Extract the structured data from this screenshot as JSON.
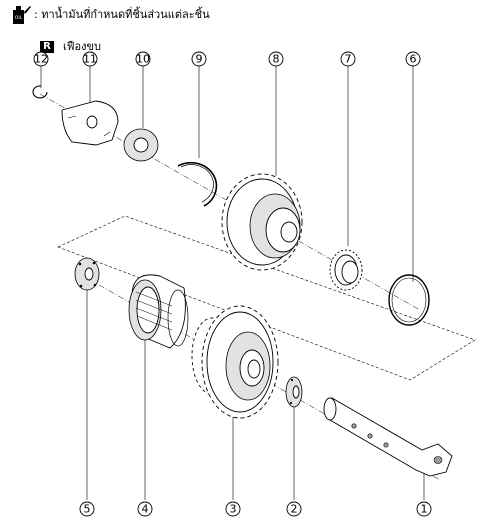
{
  "legend": {
    "oil_icon_label": "OIL",
    "oil_note": ": ทาน้ำมันที่กำหนดที่ชิ้นส่วนแต่ละชิ้น"
  },
  "section": {
    "badge": "R",
    "title": "เฟืองขบ"
  },
  "callouts": [
    {
      "id": "12",
      "label": "12"
    },
    {
      "id": "11",
      "label": "11"
    },
    {
      "id": "10",
      "label": "10"
    },
    {
      "id": "9",
      "label": "9"
    },
    {
      "id": "8",
      "label": "8"
    },
    {
      "id": "7",
      "label": "7"
    },
    {
      "id": "6",
      "label": "6"
    },
    {
      "id": "5",
      "label": "5"
    },
    {
      "id": "4",
      "label": "4"
    },
    {
      "id": "3",
      "label": "3"
    },
    {
      "id": "2",
      "label": "2"
    },
    {
      "id": "1",
      "label": "1"
    }
  ]
}
